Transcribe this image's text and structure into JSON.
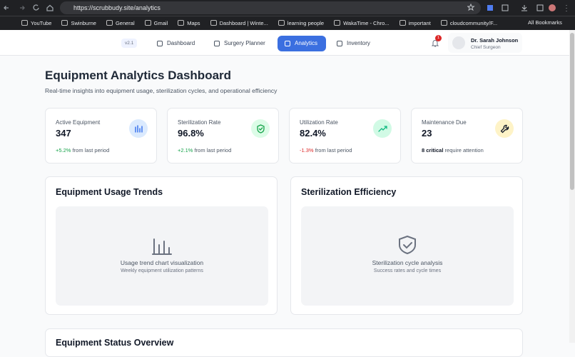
{
  "browser": {
    "url": "https://scrubbudy.site/analytics",
    "bookmarks": [
      "YouTube",
      "Swinburne",
      "General",
      "Gmail",
      "Maps",
      "Dashboard | Winte...",
      "learning people",
      "WakaTime - Chro...",
      "important",
      "cloudcommunity/F..."
    ],
    "all_bookmarks": "All Bookmarks"
  },
  "nav": {
    "version": "v2.1",
    "items": [
      "Dashboard",
      "Surgery Planner",
      "Analytics",
      "Inventory"
    ],
    "notifications": "1",
    "user": {
      "name": "Dr. Sarah Johnson",
      "role": "Chief Surgeon"
    }
  },
  "header": {
    "title": "Equipment Analytics Dashboard",
    "subtitle": "Real-time insights into equipment usage, sterilization cycles, and operational efficiency"
  },
  "stats": [
    {
      "label": "Active Equipment",
      "value": "347",
      "change": "+5.2%",
      "note": "from last period"
    },
    {
      "label": "Sterilization Rate",
      "value": "96.8%",
      "change": "+2.1%",
      "note": "from last period"
    },
    {
      "label": "Utilization Rate",
      "value": "82.4%",
      "change": "-1.3%",
      "note": "from last period"
    },
    {
      "label": "Maintenance Due",
      "value": "23",
      "change": "8 critical",
      "note": "require attention"
    }
  ],
  "panels": [
    {
      "title": "Equipment Usage Trends",
      "placeholder": "Usage trend chart visualization",
      "caption": "Weekly equipment utilization patterns"
    },
    {
      "title": "Sterilization Efficiency",
      "placeholder": "Sterilization cycle analysis",
      "caption": "Success rates and cycle times"
    }
  ],
  "section": {
    "title": "Equipment Status Overview"
  }
}
